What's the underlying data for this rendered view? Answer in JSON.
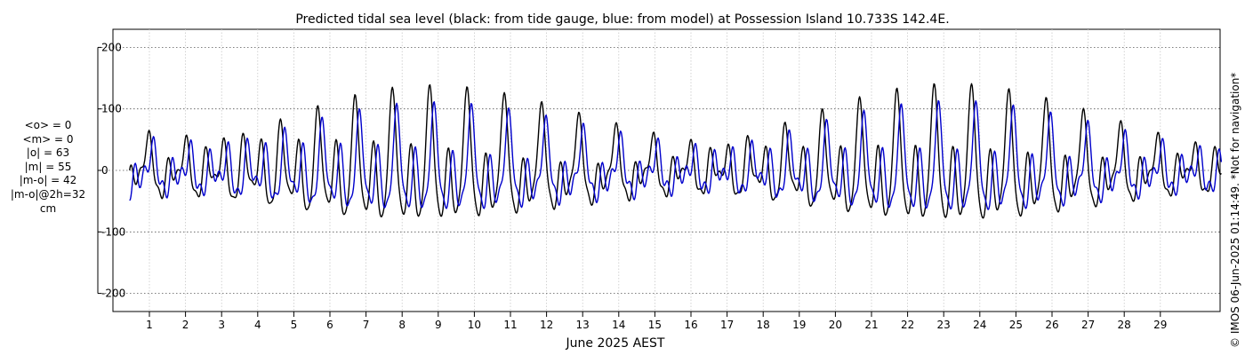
{
  "chart_data": {
    "type": "line",
    "title": "Predicted tidal sea level (black: from tide gauge, blue: from model) at Possession Island 10.733S 142.4E.",
    "xlabel": "June 2025 AEST",
    "ylabel": "",
    "xlim": [
      -0.65,
      30.7
    ],
    "ylim": [
      -230,
      230
    ],
    "yticks": [
      -200,
      -100,
      0,
      100,
      200
    ],
    "xticks": [
      1,
      2,
      3,
      4,
      5,
      6,
      7,
      8,
      9,
      10,
      11,
      12,
      13,
      14,
      15,
      16,
      17,
      18,
      19,
      20,
      21,
      22,
      23,
      24,
      25,
      26,
      27,
      28,
      29
    ],
    "grid": true,
    "series": [
      {
        "name": "from tide gauge",
        "color": "#000000",
        "params": {
          "start": 0.45,
          "end": 30.7,
          "neap_center": 15.5,
          "neap_amp": 52,
          "extra_amp": 0.25,
          "phase": 0.0,
          "offset": 0
        }
      },
      {
        "name": "from model",
        "color": "#0000cc",
        "params": {
          "start": 0.45,
          "end": 30.7,
          "neap_center": 15.5,
          "neap_amp": 40,
          "extra_amp": 0.45,
          "phase": 0.12,
          "offset": -3
        }
      }
    ],
    "stats": [
      "<o> = 0",
      "<m> = 0",
      "|o| = 63",
      "|m| = 55",
      "|m-o| = 42",
      "|m-o|@2h=32",
      "cm"
    ],
    "copyright": "© IMOS 06-Jun-2025 01:14:49. *Not for navigation*"
  }
}
